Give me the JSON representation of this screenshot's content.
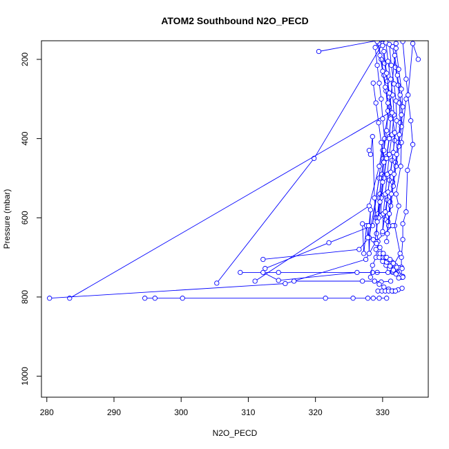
{
  "chart_data": {
    "type": "scatter",
    "title": "ATOM2 Southbound N2O_PECD",
    "xlabel": "N2O_PECD",
    "ylabel": "Pressure (mbar)",
    "xlim": [
      279.2,
      336.8
    ],
    "ylim": [
      1053,
      153
    ],
    "y_reversed": true,
    "x_ticks": [
      280,
      290,
      300,
      310,
      320,
      330
    ],
    "y_ticks": [
      200,
      400,
      600,
      800,
      1000
    ],
    "grid": false,
    "legend": "none",
    "series_color": "#0000ff",
    "marker": "open-circle",
    "series": [
      {
        "x": [
          333.0,
          333.5,
          334.2,
          334.5,
          333.7,
          333.5,
          333.0,
          333.0,
          332.8,
          332.8,
          332.8,
          333.0,
          333.0
        ],
        "y": [
          155,
          250,
          355,
          415,
          480,
          585,
          615,
          655,
          700,
          725,
          750,
          750,
          748
        ]
      },
      {
        "x": [
          335.3,
          334.5,
          333.8,
          333.5,
          332.8,
          332.7,
          332.0,
          332.4,
          331.8,
          332.6,
          331.3
        ],
        "y": [
          200,
          160,
          290,
          300,
          410,
          470,
          540,
          570,
          620,
          690,
          730
        ]
      },
      {
        "x": [
          320.5,
          330.0
        ],
        "y": [
          180,
          150
        ]
      },
      {
        "x": [
          305.3,
          319.8,
          330.0
        ],
        "y": [
          765,
          450,
          160
        ]
      },
      {
        "x": [
          283.4,
          331.0,
          332.0
        ],
        "y": [
          803,
          335,
          160
        ]
      },
      {
        "x": [
          280.4,
          315.5,
          327.5,
          329.0,
          331.5
        ],
        "y": [
          803,
          766,
          705,
          660,
          620
        ]
      },
      {
        "x": [
          312.5,
          322.0,
          328.5,
          330.0
        ],
        "y": [
          728,
          663,
          620,
          430
        ]
      },
      {
        "x": [
          312.2,
          326.5,
          328.0,
          329.5
        ],
        "y": [
          705,
          680,
          650,
          500
        ]
      },
      {
        "x": [
          311.0,
          328.0,
          329.5,
          331.0
        ],
        "y": [
          760,
          570,
          470,
          320
        ]
      },
      {
        "x": [
          308.8,
          314.5,
          329.2,
          331.5
        ],
        "y": [
          738,
          738,
          738,
          738
        ]
      },
      {
        "x": [
          312.2,
          314.5,
          326.2,
          328.5,
          330.8,
          332.2
        ],
        "y": [
          738,
          758,
          738,
          738,
          738,
          738
        ]
      },
      {
        "x": [
          294.6,
          296.1,
          300.2,
          321.5,
          325.6,
          327.8,
          328.6,
          329.5,
          330.6
        ],
        "y": [
          803,
          803,
          803,
          803,
          803,
          803,
          803,
          803,
          803
        ]
      },
      {
        "x": [
          316.8,
          327.0,
          328.8,
          329.8,
          331.2
        ],
        "y": [
          760,
          760,
          760,
          762,
          760
        ]
      },
      {
        "x": [
          327.0,
          327.2,
          327.6,
          327.8,
          328.2,
          328.0,
          327.9
        ],
        "y": [
          615,
          690,
          620,
          650,
          580,
          690,
          620
        ]
      },
      {
        "x": [
          328.0,
          328.2,
          328.5,
          328.8,
          329.0,
          329.3,
          329.0,
          328.5,
          328.2
        ],
        "y": [
          430,
          440,
          395,
          550,
          600,
          660,
          700,
          720,
          750
        ]
      },
      {
        "x": [
          328.9,
          329.2,
          329.5,
          329.8,
          330.0,
          330.3,
          330.1,
          329.8,
          329.5,
          329.2
        ],
        "y": [
          170,
          215,
          260,
          300,
          350,
          400,
          450,
          500,
          550,
          600
        ]
      },
      {
        "x": [
          329.4,
          329.8,
          330.2,
          330.5,
          330.8,
          330.6,
          330.2,
          329.9,
          329.6,
          329.3,
          329.1
        ],
        "y": [
          160,
          200,
          240,
          280,
          330,
          380,
          430,
          490,
          540,
          590,
          640
        ]
      },
      {
        "x": [
          330.0,
          330.3,
          330.7,
          331.0,
          331.2,
          331.0,
          330.6,
          330.2,
          329.9,
          329.7
        ],
        "y": [
          165,
          210,
          255,
          295,
          345,
          395,
          445,
          495,
          545,
          595
        ]
      },
      {
        "x": [
          330.5,
          330.8,
          331.2,
          331.5,
          331.7,
          331.4,
          331.0,
          330.7,
          330.4,
          330.1,
          330.0
        ],
        "y": [
          158,
          205,
          250,
          290,
          340,
          390,
          440,
          490,
          540,
          590,
          640
        ]
      },
      {
        "x": [
          331.0,
          331.3,
          331.7,
          332.0,
          332.1,
          331.8,
          331.4,
          331.0,
          330.7,
          330.4
        ],
        "y": [
          162,
          215,
          262,
          305,
          355,
          405,
          455,
          505,
          555,
          605
        ]
      },
      {
        "x": [
          331.5,
          331.9,
          332.3,
          332.5,
          332.6,
          332.3,
          331.9,
          331.5,
          331.1,
          330.8,
          330.6
        ],
        "y": [
          168,
          220,
          265,
          310,
          360,
          410,
          460,
          510,
          560,
          610,
          660
        ]
      },
      {
        "x": [
          332.0,
          332.4,
          332.8,
          333.0,
          332.8,
          332.4,
          332.0,
          331.6,
          331.2,
          330.9
        ],
        "y": [
          172,
          225,
          275,
          320,
          370,
          420,
          470,
          520,
          570,
          620
        ]
      },
      {
        "x": [
          329.2,
          329.6,
          330.0,
          330.4,
          330.8,
          331.2,
          331.0,
          330.6,
          330.2,
          329.8,
          329.4
        ],
        "y": [
          155,
          190,
          230,
          270,
          310,
          350,
          400,
          450,
          500,
          550,
          600
        ]
      },
      {
        "x": [
          330.2,
          330.6,
          331.0,
          331.4,
          331.8,
          331.6,
          331.2,
          330.8,
          330.4,
          330.0
        ],
        "y": [
          180,
          235,
          285,
          335,
          385,
          435,
          485,
          535,
          585,
          635
        ]
      },
      {
        "x": [
          328.6,
          329.0,
          329.4,
          329.8,
          330.2,
          330.0,
          329.6,
          329.2,
          328.9
        ],
        "y": [
          260,
          310,
          360,
          410,
          460,
          510,
          560,
          610,
          660
        ]
      },
      {
        "x": [
          331.8,
          332.2,
          332.6,
          332.8,
          332.5,
          332.1,
          331.7,
          331.3,
          331.0,
          330.7
        ],
        "y": [
          190,
          240,
          290,
          340,
          390,
          440,
          490,
          540,
          590,
          640
        ]
      },
      {
        "x": [
          329.5,
          330.0,
          330.5,
          331.0,
          331.5,
          332.0,
          332.5,
          332.8,
          333.0
        ],
        "y": [
          700,
          710,
          720,
          728,
          735,
          740,
          745,
          748,
          750
        ]
      },
      {
        "x": [
          328.8,
          329.5,
          330.2,
          330.9,
          331.6,
          332.3,
          332.9
        ],
        "y": [
          760,
          768,
          775,
          780,
          785,
          782,
          778
        ]
      },
      {
        "x": [
          329.0,
          329.6,
          330.1,
          330.6,
          331.1,
          331.6,
          332.0,
          332.4
        ],
        "y": [
          680,
          690,
          700,
          712,
          722,
          732,
          742,
          752
        ]
      },
      {
        "x": [
          329.3,
          329.9,
          330.4,
          330.9,
          331.4,
          331.9
        ],
        "y": [
          785,
          785,
          785,
          785,
          785,
          785
        ]
      },
      {
        "x": [
          330.4,
          330.9,
          331.4,
          331.9,
          332.4,
          332.9
        ],
        "y": [
          700,
          705,
          712,
          720,
          726,
          728
        ]
      },
      {
        "x": [
          328.6,
          329.1,
          329.6,
          330.1,
          330.6,
          331.1,
          331.6,
          332.1
        ],
        "y": [
          655,
          665,
          675,
          690,
          700,
          705,
          715,
          725
        ]
      }
    ]
  }
}
